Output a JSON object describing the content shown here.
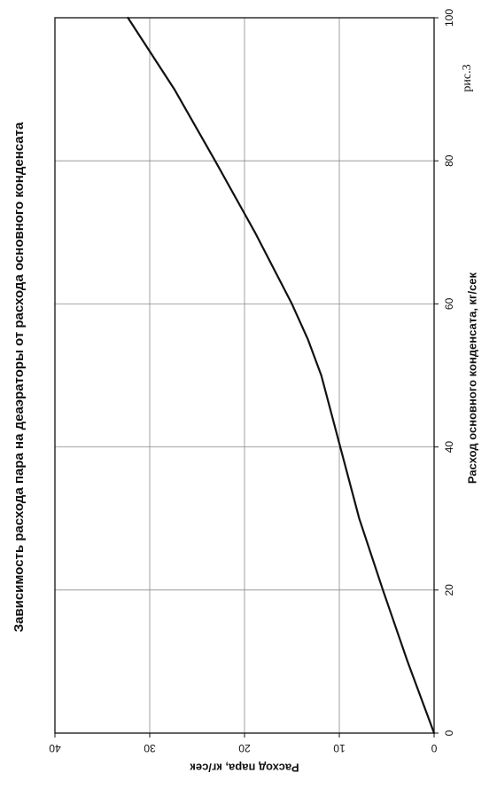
{
  "chart_data": {
    "type": "line",
    "title": "Зависимость расхода пара на деаэраторы от расхода основного конденсата",
    "xlabel": "Расход основного конденсата, кг/сек",
    "ylabel": "Расход пара, кг/сек",
    "figure_label": "рис.3",
    "xlim": [
      0,
      100
    ],
    "ylim": [
      0,
      40
    ],
    "x_ticks": [
      "0",
      "20",
      "40",
      "60",
      "80",
      "100"
    ],
    "y_ticks": [
      "0",
      "10",
      "20",
      "30",
      "40"
    ],
    "grid": true,
    "series": [
      {
        "x": [
          0,
          10,
          20,
          30,
          40,
          50,
          55,
          60,
          70,
          80,
          90,
          100
        ],
        "y": [
          0,
          2.8,
          5.4,
          7.9,
          9.9,
          11.9,
          13.3,
          15.0,
          18.9,
          23.1,
          27.4,
          32.3
        ]
      }
    ]
  }
}
